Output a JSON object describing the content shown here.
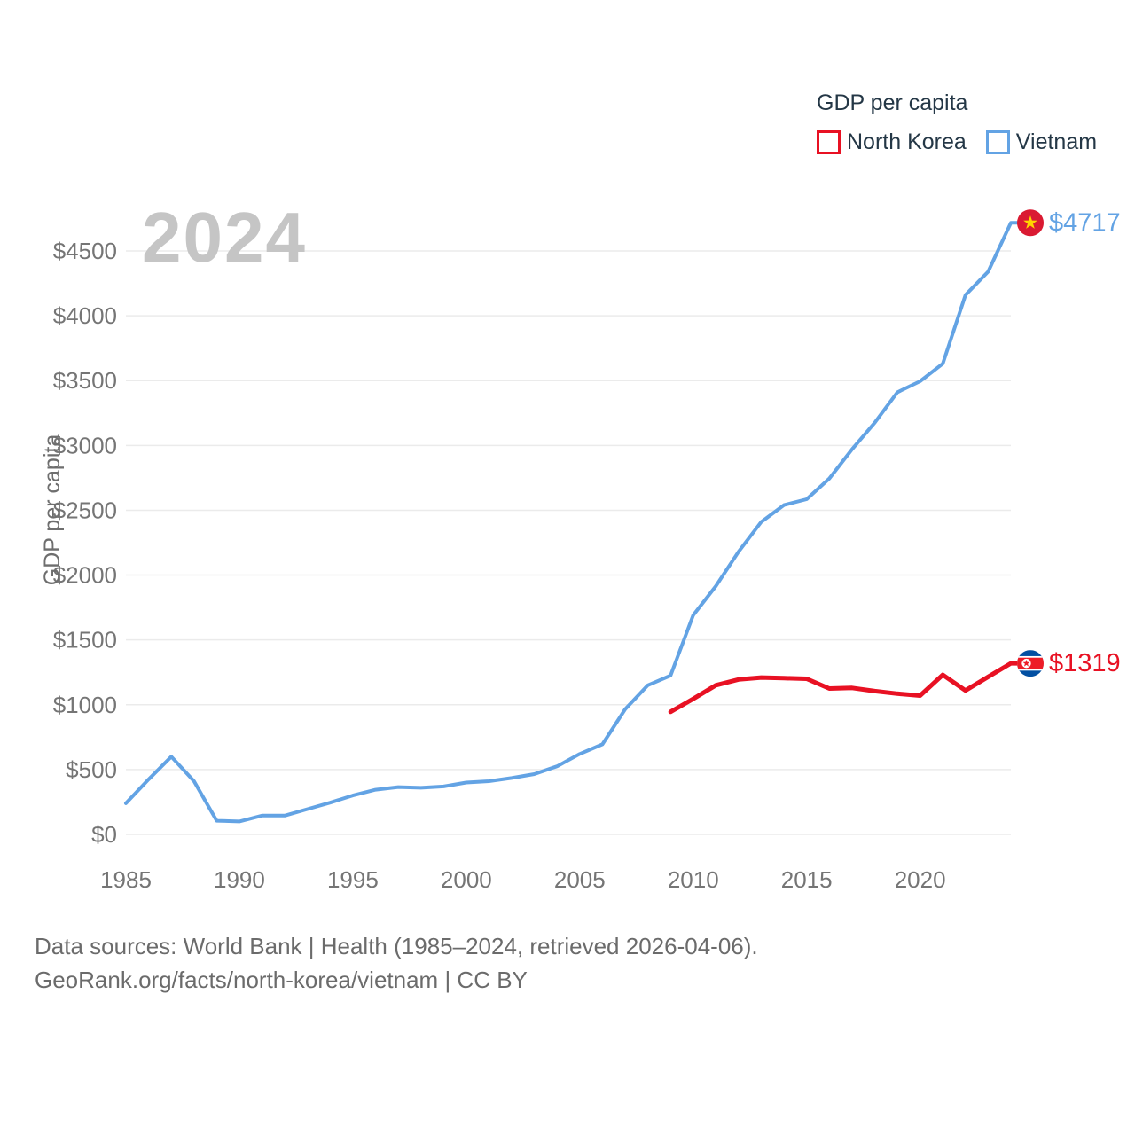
{
  "watermark": {
    "text": "2024"
  },
  "legend": {
    "title": "GDP per capita",
    "items": [
      {
        "label": "North Korea",
        "color": "#e81123"
      },
      {
        "label": "Vietnam",
        "color": "#63a3e4"
      }
    ]
  },
  "footer": {
    "line1": "Data sources: World Bank | Health (1985–2024, retrieved 2026-04-06).",
    "line2": "GeoRank.org/facts/north-korea/vietnam | CC BY"
  },
  "colors": {
    "north_korea": "#e81123",
    "vietnam": "#63a3e4",
    "gridline": "#ebebeb",
    "tick_text": "#757575",
    "legend_text": "#243746",
    "watermark": "#c5c5c5",
    "vietnam_flag_red": "#da1a32",
    "vietnam_flag_star": "#ffd500",
    "nk_flag_blue": "#024fa2",
    "nk_flag_red": "#ed1c27",
    "nk_flag_white": "#ffffff"
  },
  "chart_data": {
    "type": "line",
    "title": "GDP per capita",
    "xlabel": "",
    "ylabel": "GDP per capita",
    "xlim": [
      1985,
      2024
    ],
    "ylim": [
      0,
      4717
    ],
    "grid": true,
    "legend_position": "top-right",
    "y_ticks": [
      0,
      500,
      1000,
      1500,
      2000,
      2500,
      3000,
      3500,
      4000,
      4500
    ],
    "y_tick_labels": [
      "$0",
      "$500",
      "$1000",
      "$1500",
      "$2000",
      "$2500",
      "$3000",
      "$3500",
      "$4000",
      "$4500"
    ],
    "x_ticks": [
      1985,
      1990,
      1995,
      2000,
      2005,
      2010,
      2015,
      2020
    ],
    "x_tick_labels": [
      "1985",
      "1990",
      "1995",
      "2000",
      "2005",
      "2010",
      "2015",
      "2020"
    ],
    "series": [
      {
        "name": "Vietnam",
        "color": "#63a3e4",
        "flag": "vietnam",
        "end_label": "$4717",
        "end_value": 4717,
        "years": [
          1985,
          1986,
          1987,
          1988,
          1989,
          1990,
          1991,
          1992,
          1993,
          1994,
          1995,
          1996,
          1997,
          1998,
          1999,
          2000,
          2001,
          2002,
          2003,
          2004,
          2005,
          2006,
          2007,
          2008,
          2009,
          2010,
          2011,
          2012,
          2013,
          2014,
          2015,
          2016,
          2017,
          2018,
          2019,
          2020,
          2021,
          2022,
          2023,
          2024
        ],
        "values": [
          240,
          425,
          600,
          410,
          105,
          100,
          145,
          145,
          195,
          245,
          300,
          345,
          365,
          360,
          370,
          400,
          410,
          435,
          465,
          525,
          620,
          695,
          965,
          1150,
          1225,
          1690,
          1915,
          2180,
          2410,
          2540,
          2585,
          2745,
          2970,
          3175,
          3410,
          3495,
          3630,
          4160,
          4340,
          4717
        ]
      },
      {
        "name": "North Korea",
        "color": "#e81123",
        "flag": "north-korea",
        "end_label": "$1319",
        "end_value": 1319,
        "years": [
          2009,
          2010,
          2011,
          2012,
          2013,
          2014,
          2015,
          2016,
          2017,
          2018,
          2019,
          2020,
          2021,
          2022,
          2023,
          2024
        ],
        "values": [
          945,
          1045,
          1150,
          1195,
          1210,
          1205,
          1200,
          1125,
          1130,
          1105,
          1085,
          1070,
          1230,
          1110,
          1215,
          1319
        ]
      }
    ]
  }
}
